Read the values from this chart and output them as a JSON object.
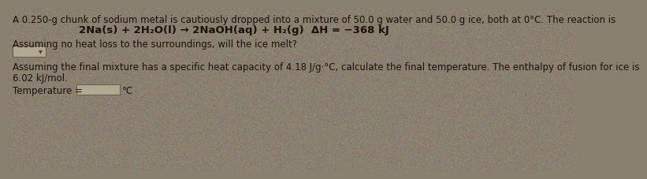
{
  "background_color": "#8a8070",
  "text_color": "#1a1008",
  "reaction_text_color": "#1a1008",
  "title_line": "A 0.250-g chunk of sodium metal is cautiously dropped into a mixture of 50.0 g water and 50.0 g ice, both at 0°C. The reaction is",
  "reaction_line": "2Na(s) + 2H₂O(l) → 2NaOH(aq) + H₂(g)  ΔH = −368 kJ",
  "question_line": "Assuming no heat loss to the surroundings, will the ice melt?",
  "second_para_line1": "Assuming the final mixture has a specific heat capacity of 4.18 J/g·°C, calculate the final temperature. The enthalpy of fusion for ice is",
  "second_para_line2": "6.02 kJ/mol.",
  "temp_label": "Temperature = ",
  "temp_unit": "°C",
  "dropdown_color": "#b0a890",
  "input_box_color": "#b0a890",
  "font_size_body": 8.5,
  "font_size_reaction": 9.5
}
